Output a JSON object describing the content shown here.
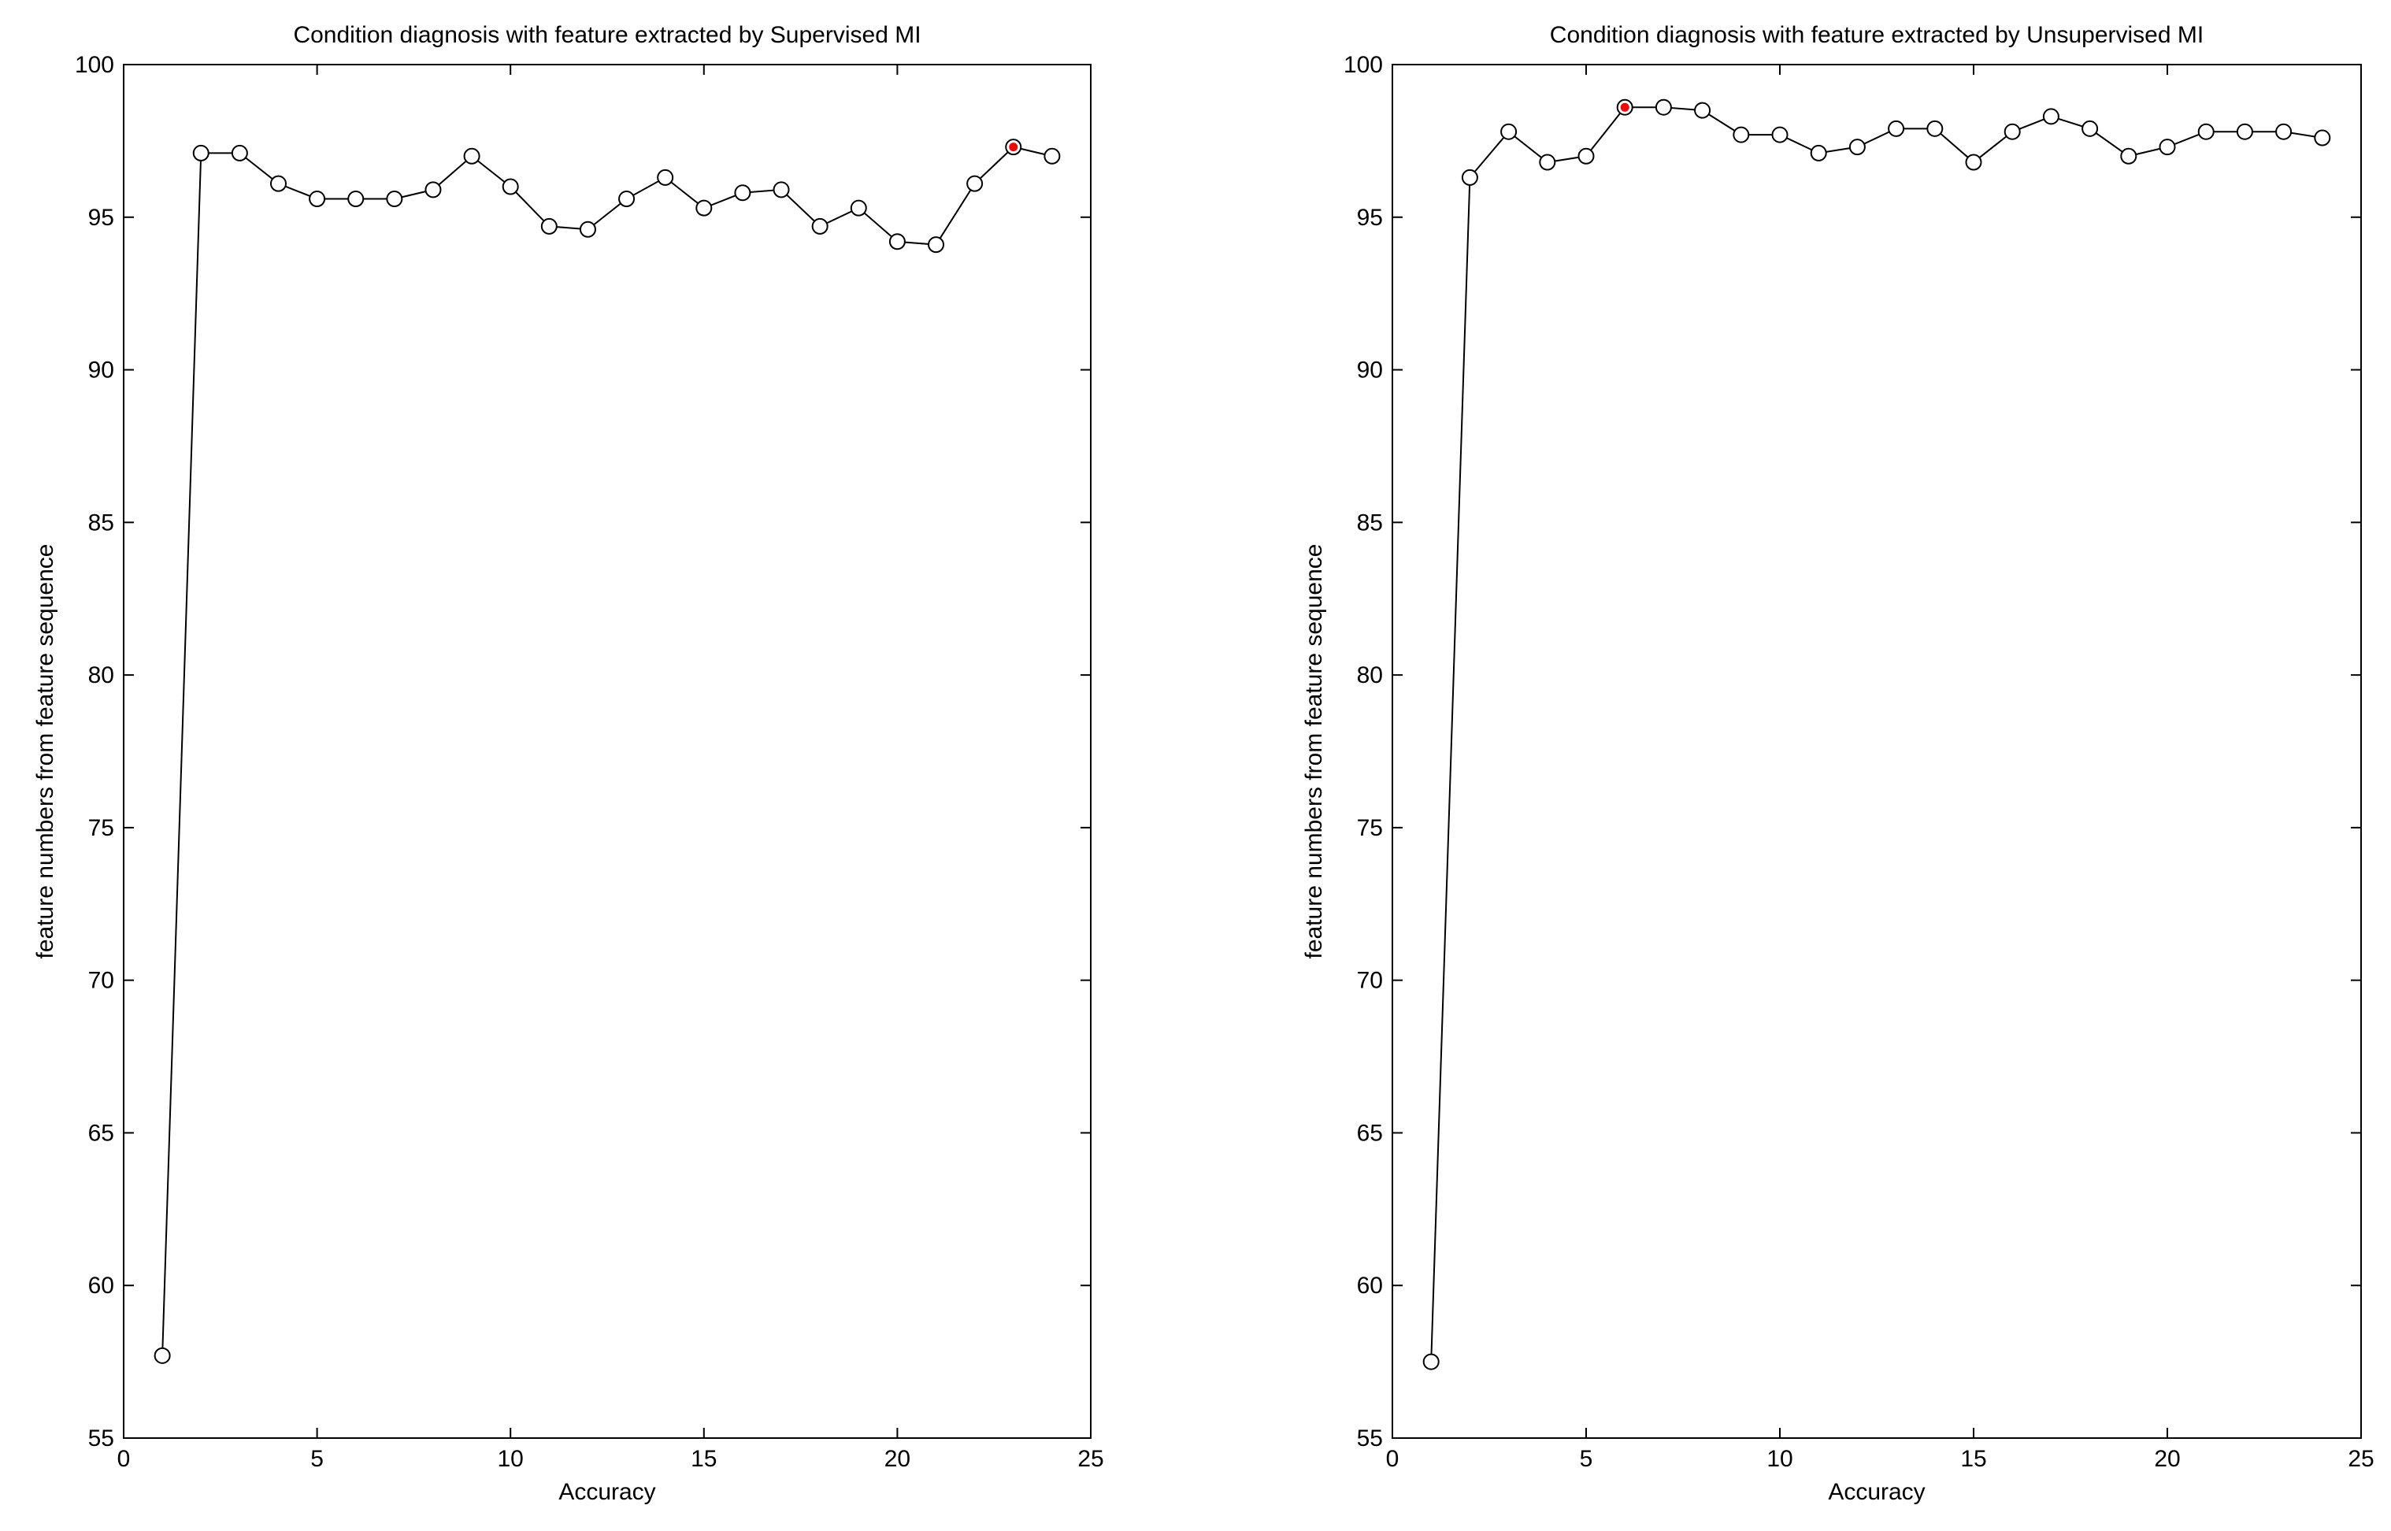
{
  "chart_data": [
    {
      "type": "line",
      "title": "Condition diagnosis with feature extracted by Supervised MI",
      "xlabel": "Accuracy",
      "ylabel": "feature numbers from feature sequence",
      "xlim": [
        0,
        25
      ],
      "ylim": [
        55,
        100
      ],
      "xticks": [
        0,
        5,
        10,
        15,
        20,
        25
      ],
      "yticks": [
        55,
        60,
        65,
        70,
        75,
        80,
        85,
        90,
        95,
        100
      ],
      "grid": false,
      "marker": "open-circle",
      "line_color": "#000000",
      "highlight_color": "#ff0000",
      "highlight_index": 22,
      "x": [
        1,
        2,
        3,
        4,
        5,
        6,
        7,
        8,
        9,
        10,
        11,
        12,
        13,
        14,
        15,
        16,
        17,
        18,
        19,
        20,
        21,
        22,
        23,
        24
      ],
      "y": [
        57.7,
        97.1,
        97.1,
        96.1,
        95.6,
        95.6,
        95.6,
        95.9,
        97.0,
        96.0,
        94.7,
        94.6,
        95.6,
        96.3,
        95.3,
        95.8,
        95.9,
        94.7,
        95.3,
        94.2,
        94.1,
        96.1,
        97.3,
        97.0
      ]
    },
    {
      "type": "line",
      "title": "Condition diagnosis with feature extracted by Unsupervised MI",
      "xlabel": "Accuracy",
      "ylabel": "feature numbers from feature sequence",
      "xlim": [
        0,
        25
      ],
      "ylim": [
        55,
        100
      ],
      "xticks": [
        0,
        5,
        10,
        15,
        20,
        25
      ],
      "yticks": [
        55,
        60,
        65,
        70,
        75,
        80,
        85,
        90,
        95,
        100
      ],
      "grid": false,
      "marker": "open-circle",
      "line_color": "#000000",
      "highlight_color": "#ff0000",
      "highlight_index": 5,
      "x": [
        1,
        2,
        3,
        4,
        5,
        6,
        7,
        8,
        9,
        10,
        11,
        12,
        13,
        14,
        15,
        16,
        17,
        18,
        19,
        20,
        21,
        22,
        23,
        24
      ],
      "y": [
        57.5,
        96.3,
        97.8,
        96.8,
        97.0,
        98.6,
        98.6,
        98.5,
        97.7,
        97.7,
        97.1,
        97.3,
        97.9,
        97.9,
        96.8,
        97.8,
        98.3,
        97.9,
        97.0,
        97.3,
        97.8,
        97.8,
        97.8,
        97.6
      ]
    }
  ]
}
